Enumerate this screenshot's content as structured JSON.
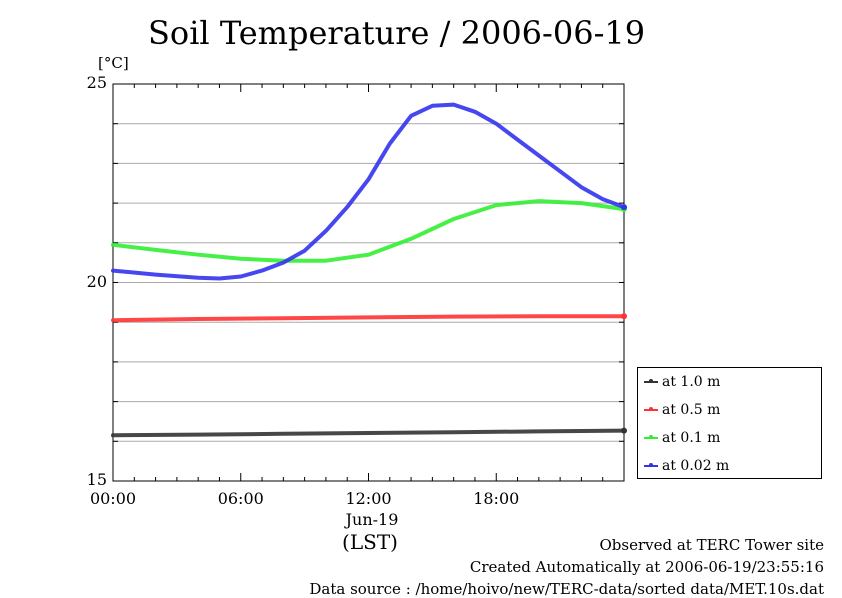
{
  "chart_data": {
    "type": "line",
    "title": "Soil Temperature / 2006-06-19",
    "ylabel": "[°C]",
    "xlabel": "(LST)",
    "x_date_label": "Jun-19",
    "ylim": [
      15,
      25
    ],
    "xlim": [
      0,
      24
    ],
    "y_ticks": [
      "25",
      "20",
      "15"
    ],
    "y_tick_values": [
      25,
      20,
      15
    ],
    "x_ticks": [
      "00:00",
      "06:00",
      "12:00",
      "18:00"
    ],
    "x_tick_values": [
      0,
      6,
      12,
      18
    ],
    "grid": "horizontal",
    "legend_position": "right",
    "series": [
      {
        "name": "at 1.0 m",
        "color": "#333333",
        "x": [
          0,
          4,
          8,
          12,
          16,
          20,
          24
        ],
        "values": [
          16.15,
          16.17,
          16.19,
          16.21,
          16.23,
          16.25,
          16.27
        ]
      },
      {
        "name": "at 0.5 m",
        "color": "#ff3333",
        "x": [
          0,
          4,
          8,
          12,
          16,
          20,
          24
        ],
        "values": [
          19.05,
          19.08,
          19.1,
          19.12,
          19.14,
          19.15,
          19.15
        ]
      },
      {
        "name": "at 0.1 m",
        "color": "#33ee33",
        "x": [
          0,
          2,
          4,
          6,
          8,
          10,
          12,
          14,
          16,
          18,
          20,
          22,
          24
        ],
        "values": [
          20.95,
          20.82,
          20.7,
          20.6,
          20.55,
          20.55,
          20.7,
          21.1,
          21.6,
          21.95,
          22.05,
          22.0,
          21.85
        ]
      },
      {
        "name": "at 0.02 m",
        "color": "#3333ee",
        "x": [
          0,
          2,
          4,
          5,
          6,
          7,
          8,
          9,
          10,
          11,
          12,
          13,
          14,
          15,
          16,
          17,
          18,
          19,
          20,
          21,
          22,
          23,
          24
        ],
        "values": [
          20.3,
          20.2,
          20.12,
          20.1,
          20.15,
          20.3,
          20.5,
          20.8,
          21.3,
          21.9,
          22.6,
          23.5,
          24.2,
          24.45,
          24.48,
          24.3,
          24.0,
          23.6,
          23.2,
          22.8,
          22.4,
          22.1,
          21.9
        ]
      }
    ]
  },
  "footer": {
    "line1": "Observed at TERC Tower site",
    "line2": "Created Automatically at 2006-06-19/23:55:16",
    "line3": "Data source : /home/hoivo/new/TERC-data/sorted  data/MET.10s.dat"
  }
}
